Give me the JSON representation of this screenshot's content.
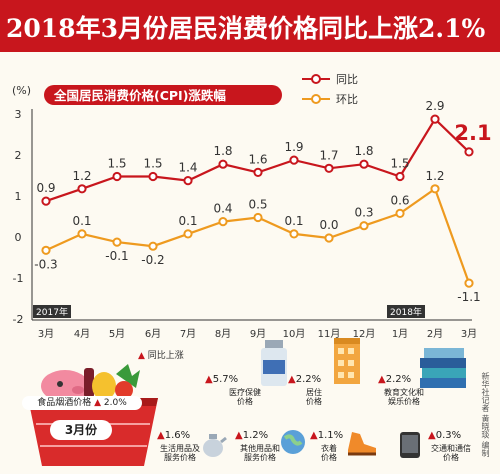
{
  "title": "2018年3月份居民消费价格同比上涨2.1%",
  "chart_data": {
    "type": "line",
    "title": "全国居民消费价格(CPI)涨跌幅",
    "ylabel": "(%)",
    "ylim": [
      -2,
      3
    ],
    "yticks": [
      "3",
      "2",
      "1",
      "0",
      "-1",
      "-2"
    ],
    "categories": [
      "3月",
      "4月",
      "5月",
      "6月",
      "7月",
      "8月",
      "9月",
      "10月",
      "11月",
      "12月",
      "1月",
      "2月",
      "3月"
    ],
    "year_labels": [
      "2017年",
      "2018年"
    ],
    "legend_placement": "top-right",
    "series": [
      {
        "name": "同比",
        "color": "#c8161d",
        "values": [
          0.9,
          1.2,
          1.5,
          1.5,
          1.4,
          1.8,
          1.6,
          1.9,
          1.7,
          1.8,
          1.5,
          2.9,
          2.1
        ],
        "labels": [
          "0.9",
          "1.2",
          "1.5",
          "1.5",
          "1.4",
          "1.8",
          "1.6",
          "1.9",
          "1.7",
          "1.8",
          "1.5",
          "2.9",
          "2.1"
        ]
      },
      {
        "name": "环比",
        "color": "#ee9a1f",
        "values": [
          -0.3,
          0.1,
          -0.1,
          -0.2,
          0.1,
          0.4,
          0.5,
          0.1,
          0.0,
          0.3,
          0.6,
          1.2,
          -1.1
        ],
        "labels": [
          "-0.3",
          "0.1",
          "-0.1",
          "-0.2",
          "0.1",
          "0.4",
          "0.5",
          "0.1",
          "0.0",
          "0.3",
          "0.6",
          "1.2",
          "-1.1"
        ]
      }
    ]
  },
  "bottom": {
    "legend": "同比上涨",
    "basket": {
      "label": "食品烟酒价格",
      "value": "2.0%",
      "month": "3月份"
    },
    "items": [
      {
        "value": "5.7%",
        "label": "医疗保健\n价格",
        "icon": "medicine-bottle-icon"
      },
      {
        "value": "2.2%",
        "label": "居住\n价格",
        "icon": "building-icon"
      },
      {
        "value": "2.2%",
        "label": "教育文化和\n娱乐价格",
        "icon": "books-icon"
      },
      {
        "value": "1.6%",
        "label": "生活用品及\n服务价格",
        "icon": "kettle-icon"
      },
      {
        "value": "1.2%",
        "label": "其他用品和\n服务价格",
        "icon": "globe-icon"
      },
      {
        "value": "1.1%",
        "label": "衣着\n价格",
        "icon": "shoe-icon"
      },
      {
        "value": "0.3%",
        "label": "交通和通信\n价格",
        "icon": "phone-icon"
      }
    ]
  },
  "credit": "新华社记者 黄晓琰 编制"
}
